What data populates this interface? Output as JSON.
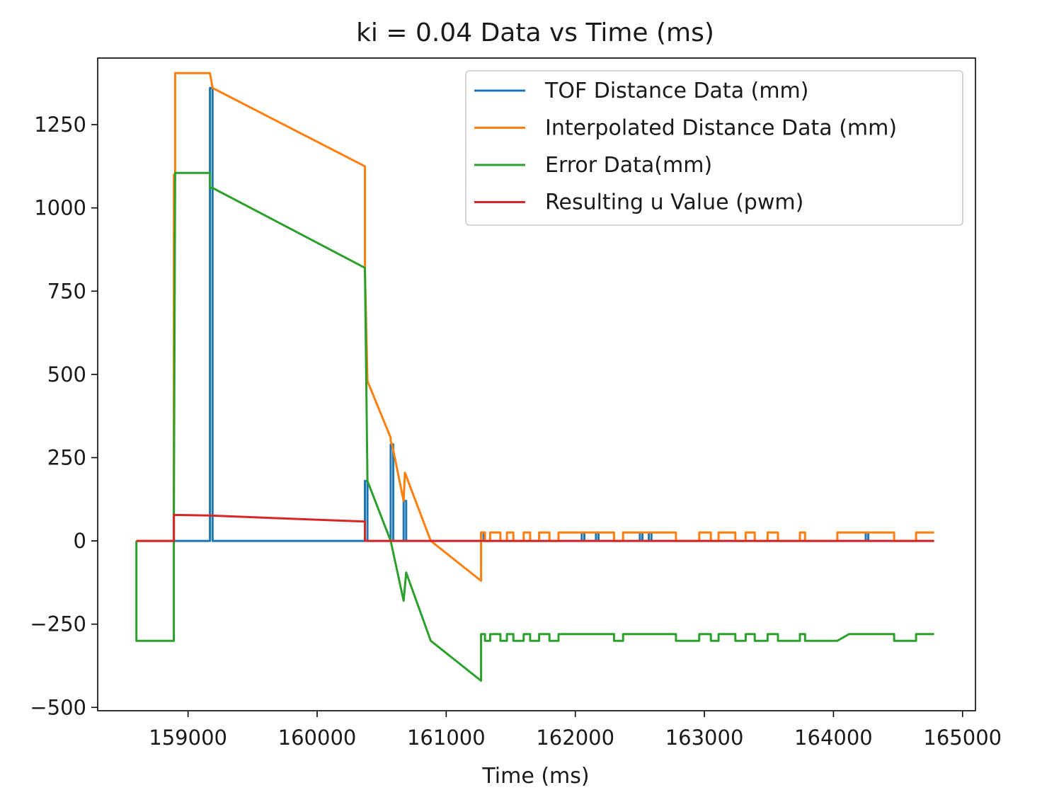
{
  "chart_data": {
    "type": "line",
    "title": "ki = 0.04 Data vs Time (ms)",
    "xlabel": "Time (ms)",
    "ylabel": "",
    "xlim": [
      158300,
      165100
    ],
    "ylim": [
      -510,
      1450
    ],
    "xticks": [
      159000,
      160000,
      161000,
      162000,
      163000,
      164000,
      165000
    ],
    "yticks": [
      -500,
      -250,
      0,
      250,
      500,
      750,
      1000,
      1250
    ],
    "grid": false,
    "legend_position": "upper right",
    "series": [
      {
        "name": "TOF Distance Data (mm)",
        "color": "#1f77b4",
        "x": [
          158600,
          158890,
          158890,
          159170,
          159170,
          159190,
          159190,
          160370,
          160370,
          160390,
          160390,
          160570,
          160570,
          160590,
          160590,
          160670,
          160670,
          160690,
          160690,
          161270,
          161270,
          161290,
          161290,
          162050,
          162050,
          162070,
          162070,
          162160,
          162160,
          162180,
          162180,
          162500,
          162500,
          162520,
          162520,
          162570,
          162570,
          162590,
          162590,
          164250,
          164250,
          164270,
          164270,
          164780
        ],
        "y": [
          0,
          0,
          0,
          0,
          1360,
          1360,
          0,
          0,
          180,
          180,
          0,
          0,
          290,
          290,
          0,
          0,
          120,
          120,
          0,
          0,
          25,
          25,
          0,
          0,
          25,
          25,
          0,
          0,
          25,
          25,
          0,
          0,
          25,
          25,
          0,
          0,
          25,
          25,
          0,
          0,
          25,
          25,
          0,
          0
        ]
      },
      {
        "name": "Interpolated Distance Data (mm)",
        "color": "#ff7f0e",
        "x": [
          158600,
          158890,
          158890,
          158900,
          158900,
          159170,
          159170,
          159190,
          160370,
          160370,
          160390,
          160570,
          160570,
          160580,
          160670,
          160680,
          160880,
          161270,
          161270,
          161300,
          161300,
          161340,
          161340,
          161420,
          161420,
          161470,
          161470,
          161520,
          161520,
          161600,
          161600,
          161650,
          161650,
          161720,
          161720,
          161800,
          161800,
          161870,
          161870,
          161950,
          161950,
          162300,
          162300,
          162370,
          162370,
          162780,
          162780,
          162960,
          162960,
          163050,
          163050,
          163110,
          163110,
          163240,
          163240,
          163320,
          163320,
          163390,
          163390,
          163490,
          163490,
          163570,
          163570,
          163740,
          163740,
          163780,
          163780,
          163880,
          163880,
          164030,
          164030,
          164120,
          164120,
          164470,
          164470,
          164640,
          164640,
          164780
        ],
        "y": [
          0,
          0,
          1100,
          1100,
          1405,
          1405,
          1405,
          1360,
          1125,
          820,
          480,
          310,
          300,
          290,
          120,
          205,
          0,
          -120,
          25,
          25,
          0,
          0,
          25,
          25,
          0,
          0,
          25,
          25,
          0,
          0,
          25,
          25,
          0,
          0,
          25,
          25,
          0,
          0,
          25,
          25,
          25,
          25,
          0,
          0,
          25,
          25,
          0,
          0,
          25,
          25,
          0,
          0,
          25,
          25,
          0,
          0,
          25,
          25,
          0,
          0,
          25,
          25,
          0,
          0,
          25,
          25,
          0,
          0,
          0,
          0,
          25,
          25,
          25,
          25,
          0,
          0,
          25,
          25
        ]
      },
      {
        "name": "Error Data(mm)",
        "color": "#2ca02c",
        "x": [
          158600,
          158600,
          158890,
          158890,
          158900,
          158900,
          159170,
          159170,
          159190,
          160370,
          160370,
          160390,
          160570,
          160670,
          160690,
          160880,
          161270,
          161270,
          161300,
          161300,
          161340,
          161340,
          161420,
          161420,
          161470,
          161470,
          161520,
          161520,
          161600,
          161600,
          161650,
          161650,
          161720,
          161720,
          161800,
          161800,
          161870,
          161870,
          161950,
          161950,
          162300,
          162300,
          162370,
          162370,
          162780,
          162780,
          162960,
          162960,
          163050,
          163050,
          163110,
          163110,
          163240,
          163240,
          163320,
          163320,
          163390,
          163390,
          163490,
          163490,
          163570,
          163570,
          163740,
          163740,
          163780,
          163780,
          163880,
          163880,
          164030,
          164030,
          164120,
          164120,
          164470,
          164470,
          164640,
          164640,
          164780
        ],
        "y": [
          0,
          -300,
          -300,
          80,
          1105,
          1105,
          1105,
          1060,
          1060,
          820,
          820,
          180,
          0,
          -180,
          -95,
          -300,
          -420,
          -280,
          -280,
          -300,
          -300,
          -280,
          -280,
          -300,
          -300,
          -280,
          -280,
          -300,
          -300,
          -280,
          -280,
          -300,
          -300,
          -280,
          -280,
          -300,
          -300,
          -280,
          -280,
          -280,
          -280,
          -300,
          -300,
          -280,
          -280,
          -300,
          -300,
          -280,
          -280,
          -300,
          -300,
          -280,
          -280,
          -300,
          -300,
          -280,
          -280,
          -300,
          -300,
          -280,
          -280,
          -300,
          -300,
          -280,
          -280,
          -300,
          -300,
          -300,
          -300,
          -300,
          -280,
          -280,
          -280,
          -300,
          -300,
          -280,
          -280
        ]
      },
      {
        "name": "Resulting u Value (pwm)",
        "color": "#d62728",
        "x": [
          158600,
          158890,
          158890,
          159170,
          160370,
          160370,
          164780
        ],
        "y": [
          0,
          0,
          78,
          76,
          58,
          0,
          0
        ]
      }
    ]
  }
}
